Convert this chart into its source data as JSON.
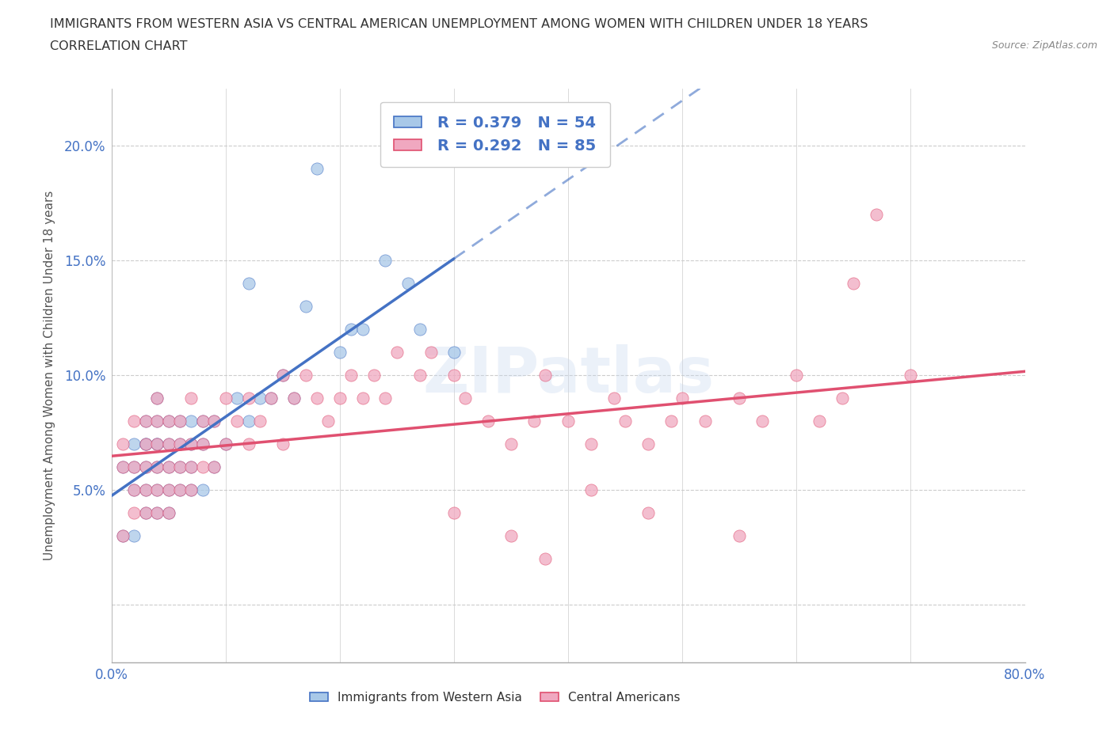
{
  "title_line1": "IMMIGRANTS FROM WESTERN ASIA VS CENTRAL AMERICAN UNEMPLOYMENT AMONG WOMEN WITH CHILDREN UNDER 18 YEARS",
  "title_line2": "CORRELATION CHART",
  "source": "Source: ZipAtlas.com",
  "ylabel": "Unemployment Among Women with Children Under 18 years",
  "xlim": [
    0.0,
    0.8
  ],
  "ylim": [
    -0.025,
    0.225
  ],
  "xticks": [
    0.0,
    0.1,
    0.2,
    0.3,
    0.4,
    0.5,
    0.6,
    0.7,
    0.8
  ],
  "xticklabels": [
    "0.0%",
    "",
    "",
    "",
    "",
    "",
    "",
    "",
    "80.0%"
  ],
  "yticks": [
    0.0,
    0.05,
    0.1,
    0.15,
    0.2
  ],
  "yticklabels": [
    "",
    "5.0%",
    "10.0%",
    "15.0%",
    "20.0%"
  ],
  "blue_line_color": "#4472c4",
  "pink_line_color": "#e05070",
  "blue_scatter_color": "#a8c8e8",
  "pink_scatter_color": "#f0a8c0",
  "R_blue": 0.379,
  "N_blue": 54,
  "R_pink": 0.292,
  "N_pink": 85,
  "legend_text_color": "#4472c4",
  "blue_points_x": [
    0.01,
    0.01,
    0.02,
    0.02,
    0.02,
    0.02,
    0.03,
    0.03,
    0.03,
    0.03,
    0.03,
    0.03,
    0.04,
    0.04,
    0.04,
    0.04,
    0.04,
    0.04,
    0.04,
    0.05,
    0.05,
    0.05,
    0.05,
    0.05,
    0.06,
    0.06,
    0.06,
    0.06,
    0.07,
    0.07,
    0.07,
    0.07,
    0.08,
    0.08,
    0.08,
    0.09,
    0.09,
    0.1,
    0.11,
    0.12,
    0.12,
    0.13,
    0.14,
    0.15,
    0.16,
    0.17,
    0.18,
    0.2,
    0.21,
    0.22,
    0.24,
    0.26,
    0.27,
    0.3
  ],
  "blue_points_y": [
    0.03,
    0.06,
    0.03,
    0.05,
    0.06,
    0.07,
    0.04,
    0.05,
    0.06,
    0.07,
    0.07,
    0.08,
    0.04,
    0.05,
    0.06,
    0.07,
    0.07,
    0.08,
    0.09,
    0.04,
    0.05,
    0.06,
    0.07,
    0.08,
    0.05,
    0.06,
    0.07,
    0.08,
    0.05,
    0.06,
    0.07,
    0.08,
    0.05,
    0.07,
    0.08,
    0.06,
    0.08,
    0.07,
    0.09,
    0.08,
    0.14,
    0.09,
    0.09,
    0.1,
    0.09,
    0.13,
    0.19,
    0.11,
    0.12,
    0.12,
    0.15,
    0.14,
    0.12,
    0.11
  ],
  "pink_points_x": [
    0.01,
    0.01,
    0.01,
    0.02,
    0.02,
    0.02,
    0.02,
    0.03,
    0.03,
    0.03,
    0.03,
    0.03,
    0.04,
    0.04,
    0.04,
    0.04,
    0.04,
    0.04,
    0.05,
    0.05,
    0.05,
    0.05,
    0.05,
    0.06,
    0.06,
    0.06,
    0.06,
    0.07,
    0.07,
    0.07,
    0.07,
    0.08,
    0.08,
    0.08,
    0.09,
    0.09,
    0.1,
    0.1,
    0.11,
    0.12,
    0.12,
    0.13,
    0.14,
    0.15,
    0.15,
    0.16,
    0.17,
    0.18,
    0.19,
    0.2,
    0.21,
    0.22,
    0.23,
    0.24,
    0.25,
    0.27,
    0.28,
    0.3,
    0.31,
    0.33,
    0.35,
    0.37,
    0.38,
    0.4,
    0.42,
    0.44,
    0.45,
    0.47,
    0.49,
    0.5,
    0.52,
    0.55,
    0.57,
    0.6,
    0.62,
    0.64,
    0.65,
    0.67,
    0.7,
    0.3,
    0.35,
    0.38,
    0.42,
    0.47,
    0.55
  ],
  "pink_points_y": [
    0.03,
    0.06,
    0.07,
    0.04,
    0.05,
    0.06,
    0.08,
    0.04,
    0.05,
    0.06,
    0.07,
    0.08,
    0.04,
    0.05,
    0.06,
    0.07,
    0.08,
    0.09,
    0.04,
    0.05,
    0.06,
    0.07,
    0.08,
    0.05,
    0.06,
    0.07,
    0.08,
    0.05,
    0.06,
    0.07,
    0.09,
    0.06,
    0.07,
    0.08,
    0.06,
    0.08,
    0.07,
    0.09,
    0.08,
    0.07,
    0.09,
    0.08,
    0.09,
    0.07,
    0.1,
    0.09,
    0.1,
    0.09,
    0.08,
    0.09,
    0.1,
    0.09,
    0.1,
    0.09,
    0.11,
    0.1,
    0.11,
    0.1,
    0.09,
    0.08,
    0.07,
    0.08,
    0.1,
    0.08,
    0.07,
    0.09,
    0.08,
    0.07,
    0.08,
    0.09,
    0.08,
    0.09,
    0.08,
    0.1,
    0.08,
    0.09,
    0.14,
    0.17,
    0.1,
    0.04,
    0.03,
    0.02,
    0.05,
    0.04,
    0.03
  ]
}
